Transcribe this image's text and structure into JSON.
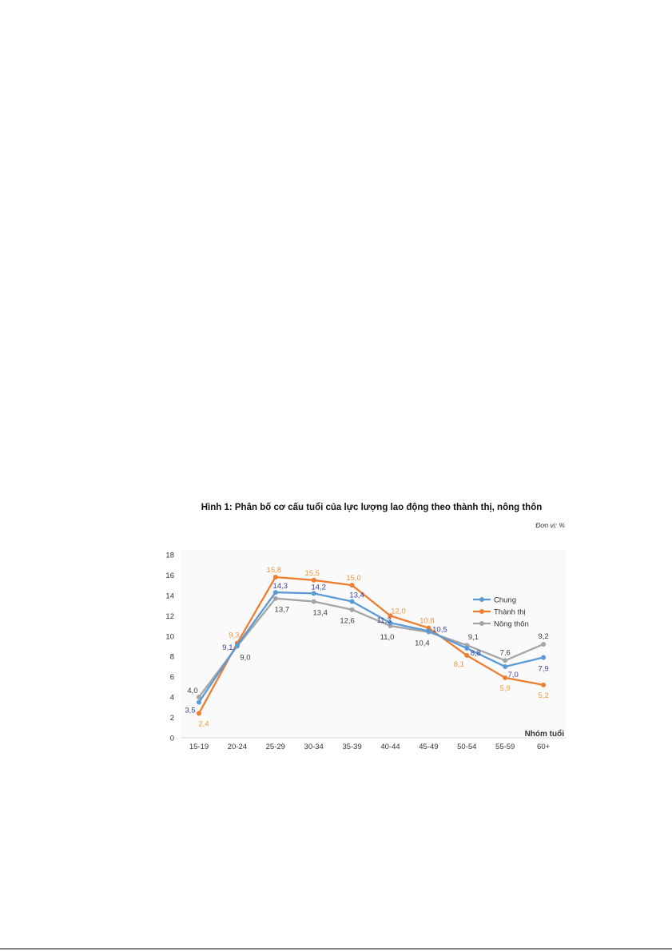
{
  "chart_data": {
    "type": "line",
    "title": "Hình 1: Phân bố cơ cấu tuổi của lực lượng lao động theo thành thị, nông thôn",
    "unit_note": "Đơn vị: %",
    "xlabel": "Nhóm tuổi",
    "ylabel": "",
    "ylim": [
      0,
      18
    ],
    "yticks": [
      0,
      2,
      4,
      6,
      8,
      10,
      12,
      14,
      16,
      18
    ],
    "grid": false,
    "legend_position": "right",
    "categories": [
      "15-19",
      "20-24",
      "25-29",
      "30-34",
      "35-39",
      "40-44",
      "45-49",
      "50-54",
      "55-59",
      "60+"
    ],
    "series": [
      {
        "name": "Chung",
        "color": "#5b9bd5",
        "label_color": "#3c3c9c",
        "values": [
          3.5,
          9.1,
          14.3,
          14.2,
          13.4,
          11.3,
          10.5,
          8.8,
          7.0,
          7.9
        ],
        "labels": [
          "3,5",
          "9,1",
          "14,3",
          "14,2",
          "13,4",
          "11,3",
          "10,5",
          "8,8",
          "7,0",
          "7,9"
        ]
      },
      {
        "name": "Thành thị",
        "color": "#ed7d31",
        "label_color": "#f0963c",
        "values": [
          2.4,
          9.3,
          15.8,
          15.5,
          15.0,
          12.0,
          10.8,
          8.1,
          5.9,
          5.2
        ],
        "labels": [
          "2,4",
          "9,3",
          "15,8",
          "15,5",
          "15,0",
          "12,0",
          "10,8",
          "8,1",
          "5,9",
          "5,2"
        ]
      },
      {
        "name": "Nông thôn",
        "color": "#a5a5a5",
        "label_color": "#404040",
        "values": [
          4.0,
          9.0,
          13.7,
          13.4,
          12.6,
          11.0,
          10.4,
          9.1,
          7.6,
          9.2
        ],
        "labels": [
          "4,0",
          "9,0",
          "13,7",
          "13,4",
          "12,6",
          "11,0",
          "10,4",
          "9,1",
          "7,6",
          "9,2"
        ]
      }
    ]
  }
}
